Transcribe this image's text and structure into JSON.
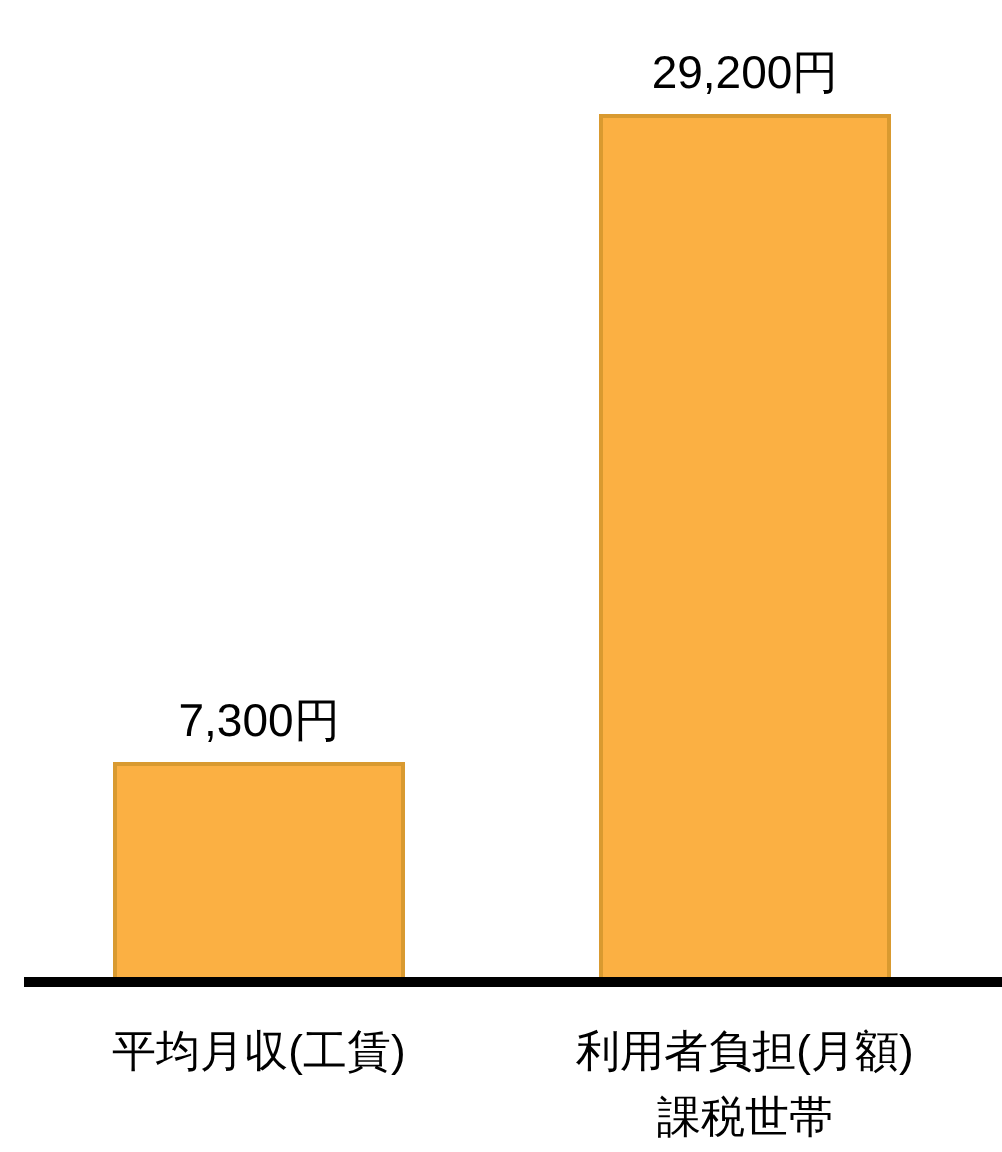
{
  "chart_data": {
    "type": "bar",
    "categories": [
      "平均月収(工賃)",
      "利用者負担(月額)\n課税世帯"
    ],
    "values": [
      7300,
      29200
    ],
    "color": "#fbb043",
    "value_labels": [
      "7,300円",
      "29,200円"
    ]
  }
}
